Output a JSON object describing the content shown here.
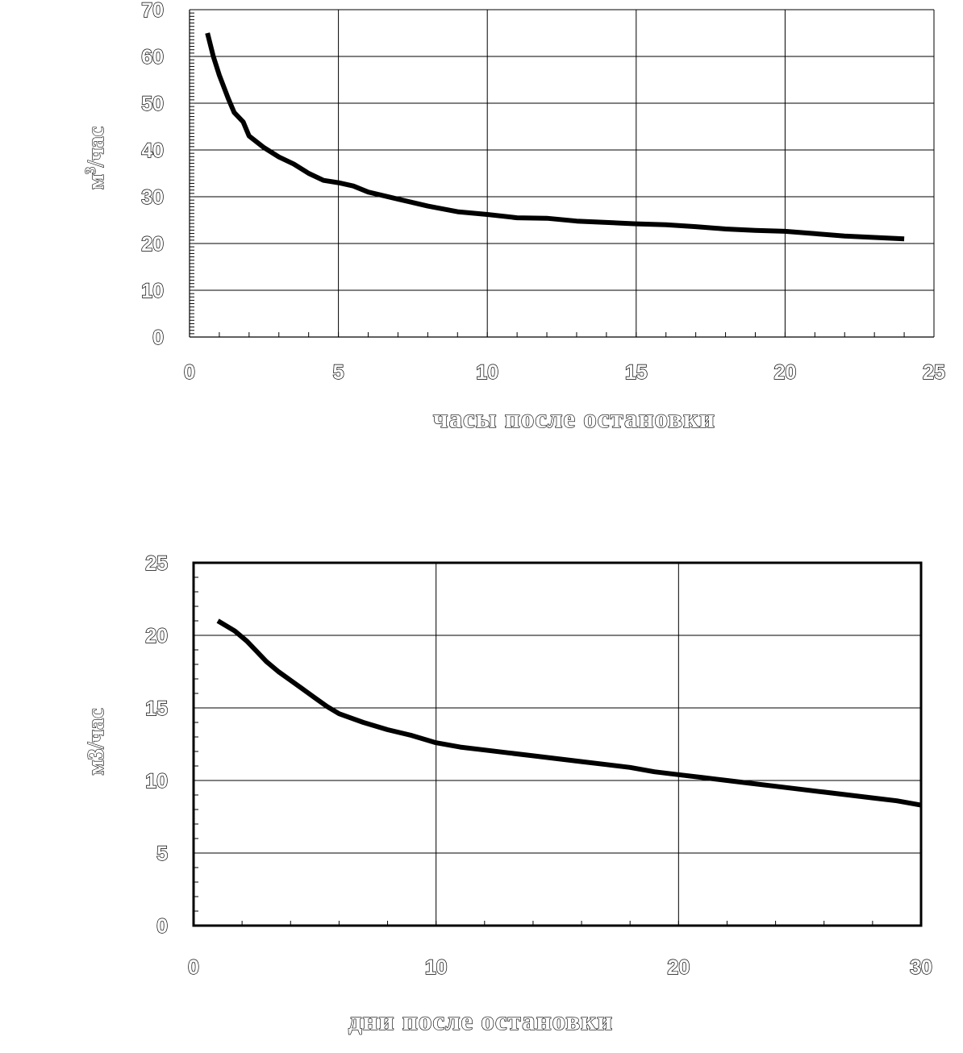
{
  "chart_data": [
    {
      "type": "line",
      "title": "",
      "xlabel": "часы после остановки",
      "ylabel": "м³/час",
      "ylabel_main": "м",
      "ylabel_sup": "3",
      "ylabel_rest": "/час",
      "xlim": [
        0,
        25
      ],
      "ylim": [
        0,
        70
      ],
      "xticks": [
        0,
        5,
        10,
        15,
        20,
        25
      ],
      "yticks": [
        0,
        10,
        20,
        30,
        40,
        50,
        60,
        70
      ],
      "grid": true,
      "series": [
        {
          "color": "#000000",
          "x": [
            0.6,
            0.8,
            1.0,
            1.3,
            1.5,
            1.8,
            2.0,
            2.5,
            3.0,
            3.5,
            4.0,
            4.5,
            5.0,
            5.5,
            6.0,
            7.0,
            8.0,
            9.0,
            10.0,
            11.0,
            12.0,
            13.0,
            14.0,
            15.0,
            16.0,
            17.0,
            18.0,
            19.0,
            20.0,
            21.0,
            22.0,
            23.0,
            24.0
          ],
          "y": [
            65,
            60,
            56,
            51,
            48,
            46,
            43,
            40.5,
            38.5,
            37,
            35,
            33.5,
            33,
            32.3,
            31,
            29.5,
            28,
            26.8,
            26.2,
            25.5,
            25.4,
            24.8,
            24.5,
            24.2,
            24,
            23.6,
            23.1,
            22.8,
            22.6,
            22.1,
            21.6,
            21.3,
            21
          ]
        }
      ]
    },
    {
      "type": "line",
      "title": "",
      "xlabel": "дни после остановки",
      "ylabel": "м3/час",
      "xlim": [
        0,
        30
      ],
      "ylim": [
        0,
        25
      ],
      "xticks": [
        0,
        10,
        20,
        30
      ],
      "yticks": [
        0,
        5,
        10,
        15,
        20,
        25
      ],
      "grid": true,
      "series": [
        {
          "color": "#000000",
          "x": [
            1,
            1.7,
            2.2,
            2.6,
            3.0,
            3.5,
            4.0,
            4.5,
            5.0,
            5.5,
            6.0,
            7.0,
            8.0,
            9.0,
            10.0,
            11.0,
            12.0,
            13.0,
            14.0,
            15.0,
            16.0,
            17.0,
            18.0,
            19.0,
            20.0,
            21.0,
            22.0,
            23.0,
            24.0,
            25.0,
            26.0,
            27.0,
            28.0,
            29.0,
            30.0
          ],
          "y": [
            21,
            20.3,
            19.6,
            18.9,
            18.2,
            17.5,
            16.9,
            16.3,
            15.7,
            15.1,
            14.6,
            14.0,
            13.5,
            13.1,
            12.6,
            12.3,
            12.1,
            11.9,
            11.7,
            11.5,
            11.3,
            11.1,
            10.9,
            10.6,
            10.4,
            10.2,
            10.0,
            9.8,
            9.6,
            9.4,
            9.2,
            9.0,
            8.8,
            8.6,
            8.3
          ]
        }
      ]
    }
  ]
}
